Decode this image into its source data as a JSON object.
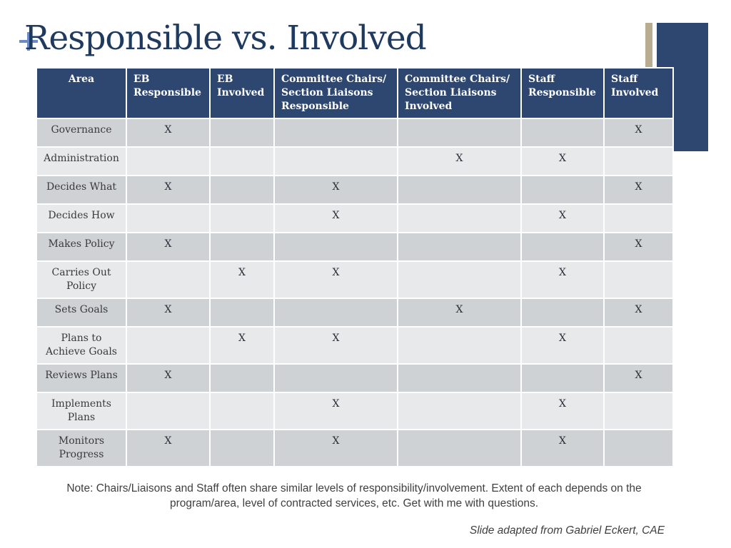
{
  "slide": {
    "title": "Responsible vs. Involved",
    "note": "Note: Chairs/Liaisons and Staff often share similar levels of responsibility/involvement. Extent of each depends on the program/area, level of contracted services, etc. Get with me with questions.",
    "credit": "Slide adapted from Gabriel Eckert, CAE"
  },
  "table": {
    "headers": [
      [
        "Area"
      ],
      [
        "EB",
        "Responsible"
      ],
      [
        "EB",
        "Involved"
      ],
      [
        "Committee Chairs/",
        "Section Liaisons",
        "Responsible"
      ],
      [
        "Committee Chairs/",
        "Section Liaisons",
        "Involved"
      ],
      [
        "Staff",
        "Responsible"
      ],
      [
        "Staff",
        "Involved"
      ]
    ],
    "rows": [
      {
        "area": [
          "Governance"
        ],
        "cells": [
          "X",
          "",
          "",
          "",
          "",
          "X"
        ]
      },
      {
        "area": [
          "Administration"
        ],
        "cells": [
          "",
          "",
          "",
          "X",
          "X",
          ""
        ]
      },
      {
        "area": [
          "Decides What"
        ],
        "cells": [
          "X",
          "",
          "X",
          "",
          "",
          "X"
        ]
      },
      {
        "area": [
          "Decides How"
        ],
        "cells": [
          "",
          "",
          "X",
          "",
          "X",
          ""
        ]
      },
      {
        "area": [
          "Makes Policy"
        ],
        "cells": [
          "X",
          "",
          "",
          "",
          "",
          "X"
        ]
      },
      {
        "area": [
          "Carries Out",
          "Policy"
        ],
        "cells": [
          "",
          "X",
          "X",
          "",
          "X",
          ""
        ]
      },
      {
        "area": [
          "Sets Goals"
        ],
        "cells": [
          "X",
          "",
          "",
          "X",
          "",
          "X"
        ]
      },
      {
        "area": [
          "Plans to",
          "Achieve Goals"
        ],
        "cells": [
          "",
          "X",
          "X",
          "",
          "X",
          ""
        ]
      },
      {
        "area": [
          "Reviews Plans"
        ],
        "cells": [
          "X",
          "",
          "",
          "",
          "",
          "X"
        ]
      },
      {
        "area": [
          "Implements",
          "Plans"
        ],
        "cells": [
          "",
          "",
          "X",
          "",
          "X",
          ""
        ]
      },
      {
        "area": [
          "Monitors",
          "Progress"
        ],
        "cells": [
          "X",
          "",
          "X",
          "",
          "X",
          ""
        ]
      }
    ]
  },
  "colors": {
    "header_bg": "#2e4770",
    "row_dark": "#cfd2d5",
    "row_light": "#e8e9eb",
    "title": "#1f3a5f",
    "accent_tan": "#b8ad8f",
    "plus": "#6b8bc7"
  },
  "icons": {
    "title_marker": "plus-icon"
  }
}
